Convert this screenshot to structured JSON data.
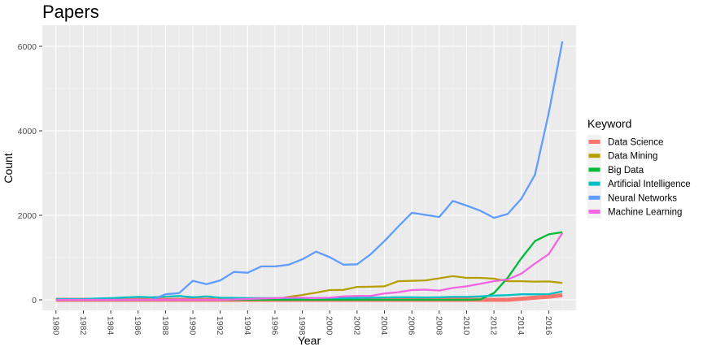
{
  "chart_data": {
    "type": "line",
    "title": "Papers",
    "xlabel": "Year",
    "ylabel": "Count",
    "xlim": [
      1979,
      2018
    ],
    "ylim": [
      -250,
      6500
    ],
    "x_ticks": [
      1980,
      1982,
      1984,
      1986,
      1988,
      1990,
      1992,
      1994,
      1996,
      1998,
      2000,
      2002,
      2004,
      2006,
      2008,
      2010,
      2012,
      2014,
      2016
    ],
    "x_tick_labels": [
      "1980",
      "1982",
      "1984",
      "1986",
      "1988",
      "1990",
      "1992",
      "1994",
      "1996",
      "1998",
      "2000",
      "2002",
      "2004",
      "2006",
      "2008",
      "2010",
      "2012",
      "2014",
      "2016"
    ],
    "y_ticks": [
      0,
      2000,
      4000,
      6000
    ],
    "y_tick_labels": [
      "0",
      "2000",
      "4000",
      "6000"
    ],
    "grid": true,
    "legend": {
      "title": "Keyword",
      "placement": "right"
    },
    "x": [
      1980,
      1981,
      1982,
      1983,
      1984,
      1985,
      1986,
      1987,
      1988,
      1989,
      1990,
      1991,
      1992,
      1993,
      1994,
      1995,
      1996,
      1997,
      1998,
      1999,
      2000,
      2001,
      2002,
      2003,
      2004,
      2005,
      2006,
      2007,
      2008,
      2009,
      2010,
      2011,
      2012,
      2013,
      2014,
      2015,
      2016,
      2017
    ],
    "series": [
      {
        "name": "Data Science",
        "color": "#F8766D",
        "width": 5,
        "values": [
          0,
          0,
          0,
          0,
          0,
          0,
          0,
          0,
          0,
          0,
          0,
          0,
          0,
          0,
          0,
          0,
          0,
          0,
          0,
          0,
          0,
          0,
          0,
          0,
          0,
          0,
          0,
          0,
          0,
          0,
          0,
          0,
          0,
          0,
          25,
          50,
          75,
          110
        ]
      },
      {
        "name": "Data Mining",
        "color": "#B79F00",
        "width": 2.3,
        "values": [
          0,
          0,
          0,
          0,
          0,
          0,
          0,
          0,
          0,
          0,
          0,
          0,
          0,
          0,
          0,
          0,
          10,
          70,
          115,
          170,
          230,
          235,
          305,
          310,
          320,
          440,
          450,
          460,
          510,
          560,
          520,
          520,
          500,
          440,
          440,
          430,
          435,
          400
        ]
      },
      {
        "name": "Big Data",
        "color": "#00BA38",
        "width": 2.3,
        "values": [
          0,
          0,
          0,
          0,
          0,
          0,
          0,
          0,
          0,
          0,
          0,
          0,
          0,
          0,
          0,
          0,
          0,
          0,
          0,
          0,
          0,
          0,
          0,
          0,
          0,
          0,
          0,
          0,
          0,
          0,
          0,
          10,
          160,
          520,
          980,
          1390,
          1550,
          1600
        ]
      },
      {
        "name": "Artificial Intelligence",
        "color": "#00BFC4",
        "width": 2.3,
        "values": [
          20,
          20,
          20,
          30,
          40,
          55,
          70,
          60,
          75,
          90,
          60,
          80,
          50,
          45,
          40,
          40,
          40,
          40,
          40,
          40,
          40,
          40,
          45,
          50,
          55,
          60,
          60,
          55,
          60,
          70,
          70,
          80,
          100,
          110,
          130,
          130,
          135,
          200
        ]
      },
      {
        "name": "Neural Networks",
        "color": "#619CFF",
        "width": 2.3,
        "values": [
          0,
          0,
          0,
          0,
          0,
          0,
          0,
          0,
          130,
          160,
          450,
          370,
          460,
          660,
          640,
          790,
          790,
          830,
          960,
          1140,
          1010,
          830,
          840,
          1080,
          1390,
          1730,
          2060,
          2010,
          1960,
          2340,
          2230,
          2110,
          1940,
          2030,
          2390,
          2960,
          4420,
          6120
        ]
      },
      {
        "name": "Machine Learning",
        "color": "#F564E3",
        "width": 2.3,
        "values": [
          0,
          0,
          0,
          0,
          0,
          0,
          0,
          0,
          0,
          0,
          0,
          0,
          0,
          10,
          20,
          30,
          40,
          50,
          50,
          40,
          50,
          80,
          90,
          95,
          150,
          180,
          230,
          240,
          220,
          280,
          320,
          380,
          440,
          480,
          620,
          860,
          1080,
          1580
        ]
      }
    ]
  }
}
